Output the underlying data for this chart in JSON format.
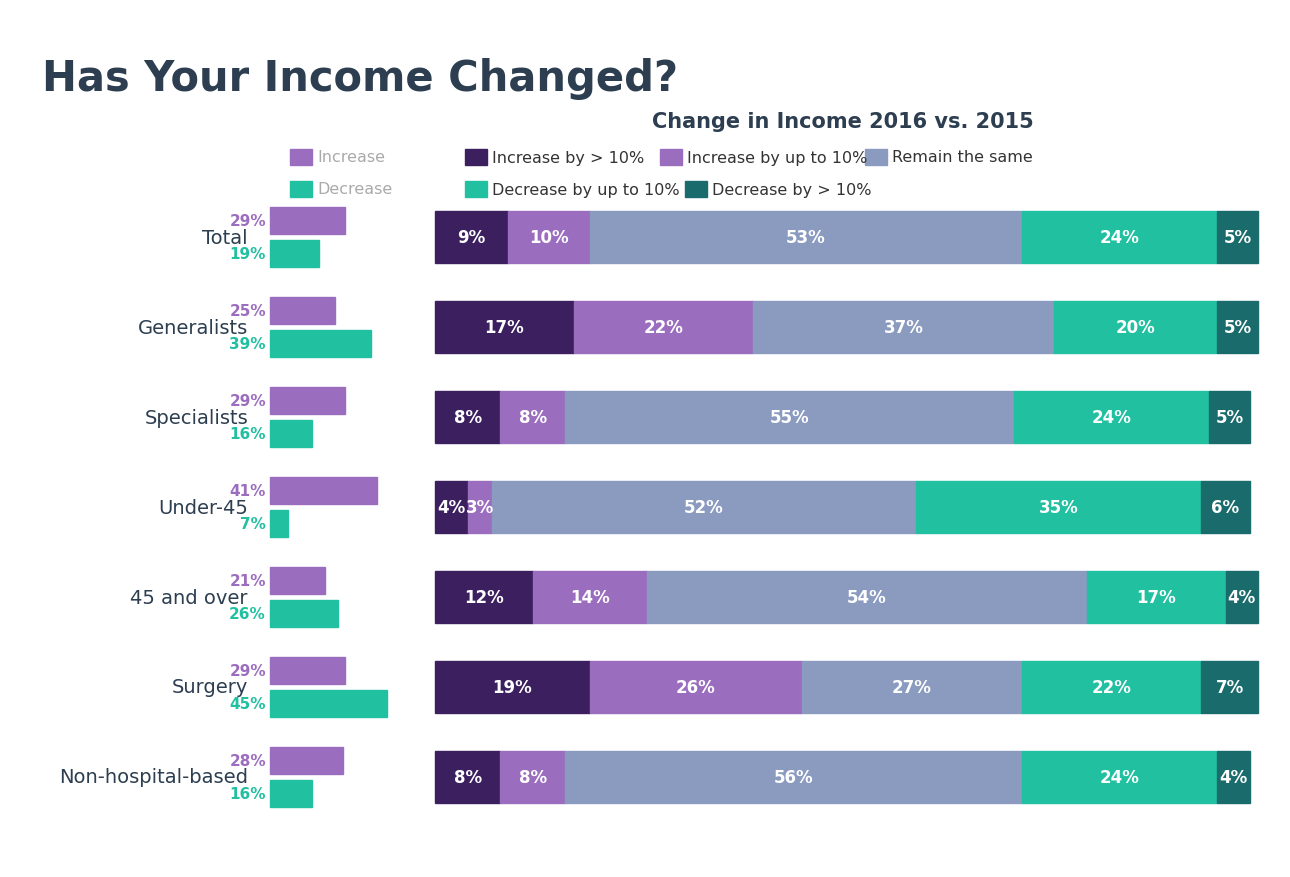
{
  "title_main": "Has Your Income Changed?",
  "title_sub": "Change in Income 2016 vs. 2015",
  "categories": [
    "Total",
    "Generalists",
    "Specialists",
    "Under-45",
    "45 and over",
    "Surgery",
    "Non-hospital-based"
  ],
  "increase_pct": [
    29,
    25,
    29,
    41,
    21,
    29,
    28
  ],
  "decrease_pct": [
    19,
    39,
    16,
    7,
    26,
    45,
    16
  ],
  "stacked_data": [
    [
      9,
      10,
      53,
      24,
      5
    ],
    [
      17,
      22,
      37,
      20,
      5
    ],
    [
      8,
      8,
      55,
      24,
      5
    ],
    [
      4,
      3,
      52,
      35,
      6
    ],
    [
      12,
      14,
      54,
      17,
      4
    ],
    [
      19,
      26,
      27,
      22,
      7
    ],
    [
      8,
      8,
      56,
      24,
      4
    ]
  ],
  "seg_colors": [
    "#3b1f5e",
    "#9b6dbf",
    "#8a9bbf",
    "#20c0a0",
    "#1a6b6b"
  ],
  "increase_color": "#9b6dbf",
  "decrease_color": "#20c0a0",
  "increase_label_color": "#9b6dbf",
  "decrease_label_color": "#20c0a0",
  "bg_color": "#ffffff",
  "title_color": "#2c3e50",
  "label_color": "#2c3e50",
  "legend_left_col": [
    {
      "label": "Increase",
      "color": "#9b6dbf",
      "text_color": "#aaaaaa"
    },
    {
      "label": "Decrease",
      "color": "#20c0a0",
      "text_color": "#aaaaaa"
    }
  ],
  "legend_right_rows": [
    [
      {
        "label": "Increase by > 10%",
        "color": "#3b1f5e",
        "text_color": "#333333"
      },
      {
        "label": "Increase by up to 10%",
        "color": "#9b6dbf",
        "text_color": "#333333"
      },
      {
        "label": "Remain the same",
        "color": "#8a9bbf",
        "text_color": "#333333"
      }
    ],
    [
      {
        "label": "Decrease by up to 10%",
        "color": "#20c0a0",
        "text_color": "#333333"
      },
      {
        "label": "Decrease by > 10%",
        "color": "#1a6b6b",
        "text_color": "#333333"
      }
    ]
  ]
}
